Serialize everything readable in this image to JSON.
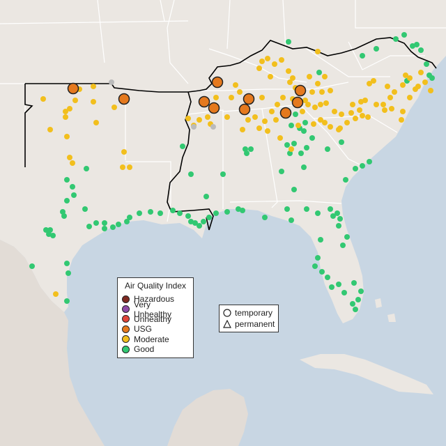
{
  "colors": {
    "water": "#c8d6e3",
    "land": "#ebe7e2",
    "mexico_land": "#e2dcd6",
    "region_border": "#000000",
    "state_border": "#ffffff"
  },
  "legend": {
    "title": "Air Quality Index",
    "categories": [
      {
        "label": "Hazardous",
        "color": "#7e2a22"
      },
      {
        "label": "Very Unhealthy",
        "color": "#8e4ba6"
      },
      {
        "label": "Unhealthy",
        "color": "#e0463a"
      },
      {
        "label": "USG",
        "color": "#e5791e"
      },
      {
        "label": "Moderate",
        "color": "#f2bf1d"
      },
      {
        "label": "Good",
        "color": "#32c872"
      }
    ]
  },
  "site_type_legend": {
    "items": [
      {
        "label": "temporary",
        "icon": "circle-outline-icon"
      },
      {
        "label": "permanent",
        "icon": "triangle-outline-icon"
      }
    ]
  }
}
